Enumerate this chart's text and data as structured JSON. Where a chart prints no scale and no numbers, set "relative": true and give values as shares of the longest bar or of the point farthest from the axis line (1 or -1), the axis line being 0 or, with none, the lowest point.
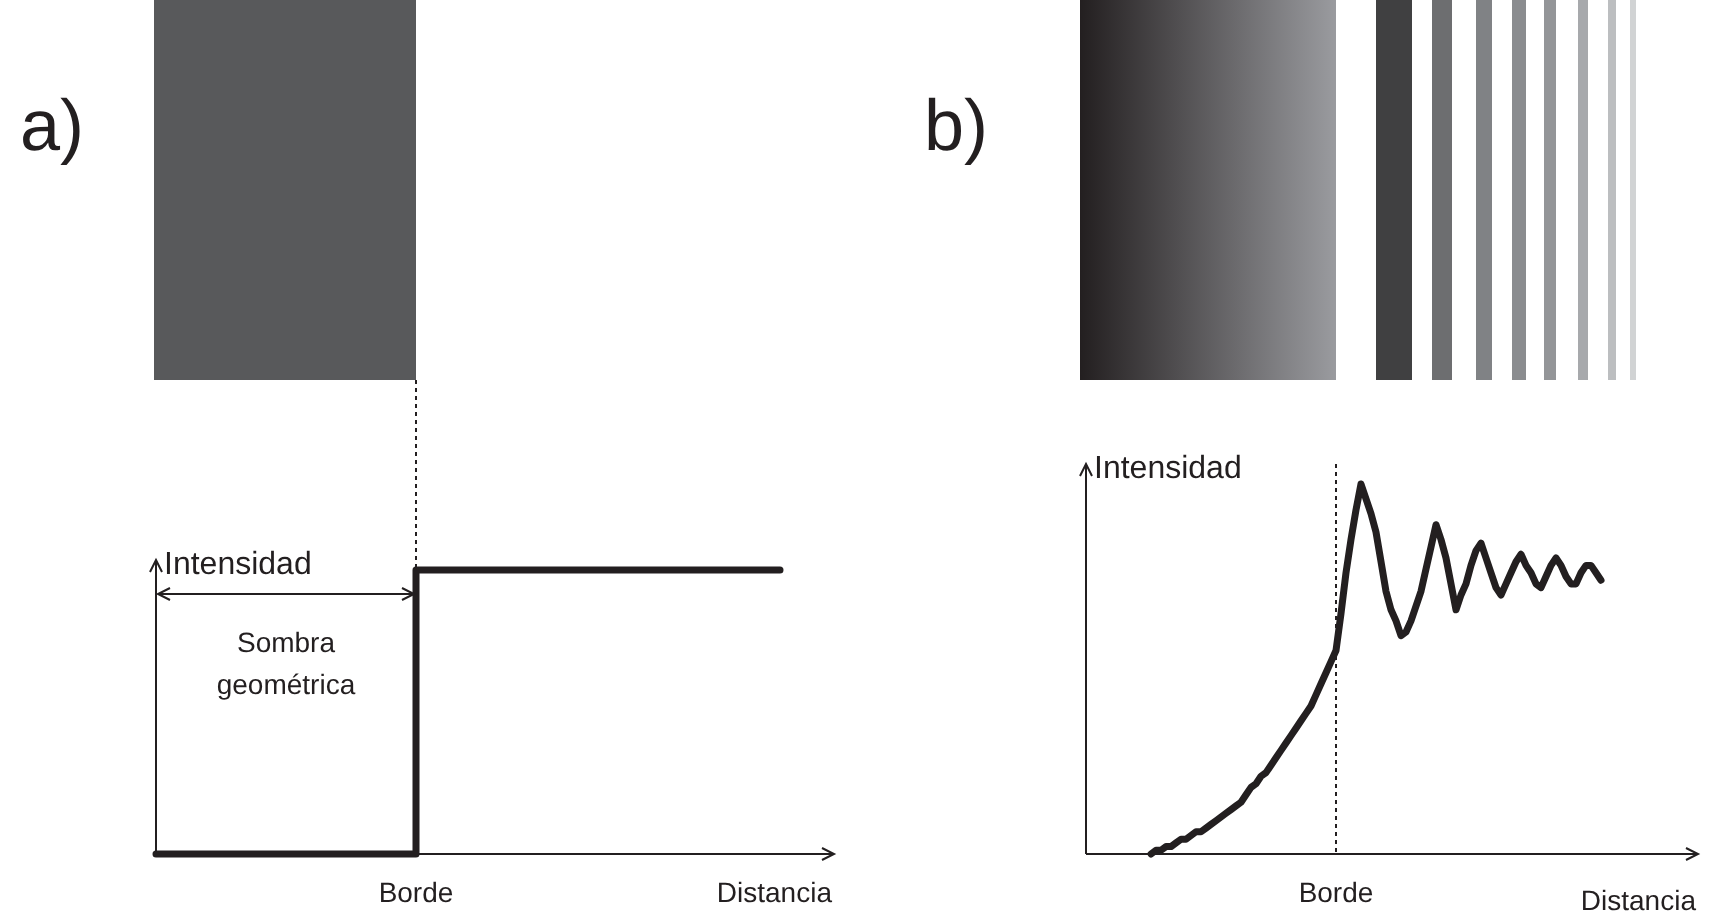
{
  "chart_data": [
    {
      "type": "step",
      "title": "a)",
      "xlabel": "Distancia",
      "ylabel": "Intensidad",
      "relative": true,
      "categories": [
        null,
        null,
        null,
        null,
        null,
        null,
        null,
        null,
        null,
        null,
        null,
        null,
        null,
        null
      ],
      "series": [
        {
          "color": "#231f20",
          "values": [
            0,
            0,
            0,
            0,
            0,
            1,
            1,
            1,
            1,
            1,
            1,
            1,
            1,
            null
          ]
        }
      ],
      "annotations": [
        "Sombra geométrica",
        "Borde"
      ]
    },
    {
      "type": "line",
      "title": "b)",
      "xlabel": "Distancia",
      "ylabel": "Intensidad",
      "relative": true,
      "categories": [
        null,
        null,
        null,
        null,
        null,
        null,
        null,
        null,
        null,
        null,
        null,
        null,
        null,
        null,
        null,
        null,
        null,
        null,
        null,
        null,
        null,
        null,
        null,
        null,
        null,
        null,
        null,
        null,
        null,
        null,
        null,
        null,
        null,
        null,
        null,
        null,
        null,
        null,
        null,
        null,
        null,
        null,
        null,
        null,
        null,
        null,
        null,
        null,
        null,
        null,
        null,
        null,
        null,
        null,
        null,
        null,
        null,
        null,
        null,
        null,
        null,
        null,
        null,
        null,
        null,
        null,
        null,
        null,
        null,
        null,
        null,
        null,
        null,
        null,
        null,
        null,
        null,
        null,
        null,
        null,
        null,
        null,
        null,
        null,
        null,
        null,
        null,
        null,
        null,
        null,
        null,
        null,
        null,
        null,
        null,
        null,
        null,
        null,
        null,
        null,
        null,
        null,
        null,
        null,
        null,
        null,
        null,
        null,
        null,
        null,
        null,
        null,
        null,
        null,
        null,
        null,
        null,
        null,
        null,
        null,
        null,
        null,
        null
      ],
      "series": [
        {
          "color": "#231f20",
          "values": [
            null,
            null,
            null,
            null,
            null,
            null,
            null,
            null,
            null,
            null,
            null,
            null,
            null,
            0,
            0.01,
            0.01,
            0.02,
            0.02,
            0.03,
            0.04,
            0.04,
            0.05,
            0.06,
            0.06,
            0.07,
            0.08,
            0.09,
            0.1,
            0.11,
            0.12,
            0.13,
            0.14,
            0.16,
            0.18,
            0.19,
            0.21,
            0.22,
            0.24,
            0.26,
            0.28,
            0.3,
            0.32,
            0.34,
            0.36,
            0.38,
            0.4,
            0.43,
            0.46,
            0.49,
            0.52,
            0.55,
            0.65,
            0.76,
            0.85,
            0.93,
            1,
            0.96,
            0.92,
            0.87,
            0.79,
            0.71,
            0.66,
            0.63,
            0.59,
            0.6,
            0.63,
            0.67,
            0.71,
            0.77,
            0.83,
            0.89,
            0.85,
            0.8,
            0.73,
            0.66,
            0.7,
            0.73,
            0.78,
            0.82,
            0.84,
            0.8,
            0.76,
            0.72,
            0.7,
            0.73,
            0.76,
            0.79,
            0.81,
            0.78,
            0.76,
            0.73,
            0.72,
            0.75,
            0.78,
            0.8,
            0.78,
            0.75,
            0.73,
            0.73,
            0.76,
            0.78,
            0.78,
            0.76,
            0.74,
            null,
            null,
            null,
            null,
            null,
            null,
            null,
            null,
            null,
            null,
            null,
            null,
            null,
            null,
            null,
            null,
            null,
            null,
            null
          ]
        }
      ],
      "annotations": [
        "Borde"
      ]
    }
  ]
}
